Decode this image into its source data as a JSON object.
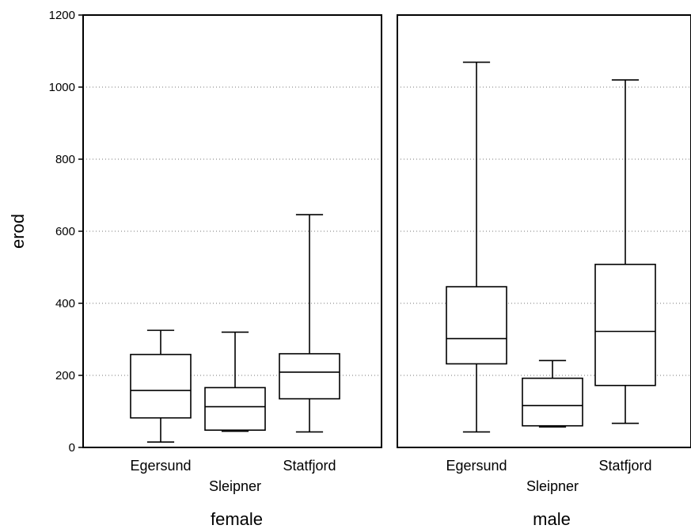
{
  "chart_data": {
    "type": "boxplot",
    "ylabel": "erod",
    "ylim": [
      0,
      1200
    ],
    "y_ticks": [
      0,
      200,
      400,
      600,
      800,
      1000,
      1200
    ],
    "grid": true,
    "categories": [
      "Egersund",
      "Sleipner",
      "Statfjord"
    ],
    "panels": [
      {
        "name": "female",
        "boxes": [
          {
            "category": "Egersund",
            "min": 15,
            "q1": 82,
            "median": 158,
            "q3": 258,
            "max": 325
          },
          {
            "category": "Sleipner",
            "min": 45,
            "q1": 48,
            "median": 113,
            "q3": 166,
            "max": 320
          },
          {
            "category": "Statfjord",
            "min": 43,
            "q1": 135,
            "median": 209,
            "q3": 260,
            "max": 646
          }
        ]
      },
      {
        "name": "male",
        "boxes": [
          {
            "category": "Egersund",
            "min": 43,
            "q1": 232,
            "median": 302,
            "q3": 446,
            "max": 1069
          },
          {
            "category": "Sleipner",
            "min": 57,
            "q1": 60,
            "median": 116,
            "q3": 192,
            "max": 241
          },
          {
            "category": "Statfjord",
            "min": 67,
            "q1": 172,
            "median": 322,
            "q3": 508,
            "max": 1020
          }
        ]
      }
    ]
  }
}
